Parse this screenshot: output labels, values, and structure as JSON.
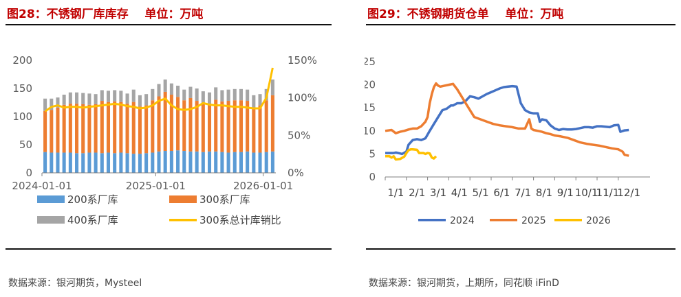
{
  "left": {
    "title": "图28：不锈钢厂库库存    单位：万吨",
    "source": "数据来源：银河期货，Mysteel",
    "colors": {
      "s200": "#5b9bd5",
      "s300": "#ed7d31",
      "s400": "#a5a5a5",
      "ratio": "#ffc000"
    },
    "chart_data": {
      "type": "bar",
      "stacked": true,
      "title": "不锈钢厂库库存",
      "ylabel": "万吨",
      "ylim": [
        0,
        200
      ],
      "yticks": [
        "0",
        "50",
        "100",
        "150",
        "200"
      ],
      "y2lim": [
        0,
        1.5
      ],
      "y2ticks": [
        "0%",
        "50%",
        "100%",
        "150%"
      ],
      "xtick_labels": [
        "2024-01-01",
        "2025-01-01",
        "2026-01-01"
      ],
      "xtick_index": [
        0,
        18,
        35
      ],
      "legend": [
        "200系厂库",
        "300系厂库",
        "400系厂库",
        "300系总计库销比"
      ],
      "series": [
        {
          "name": "200系厂库",
          "values": [
            37,
            36,
            36,
            36,
            36,
            35,
            35,
            36,
            36,
            35,
            36,
            35,
            36,
            35,
            34,
            34,
            35,
            36,
            38,
            39,
            39,
            40,
            39,
            38,
            38,
            37,
            38,
            38,
            37,
            36,
            37,
            37,
            38,
            36,
            36,
            37,
            38
          ]
        },
        {
          "name": "300系厂库",
          "values": [
            73,
            76,
            80,
            85,
            87,
            88,
            87,
            85,
            86,
            93,
            90,
            92,
            90,
            88,
            92,
            84,
            85,
            93,
            98,
            105,
            100,
            95,
            90,
            95,
            90,
            86,
            85,
            92,
            90,
            92,
            92,
            92,
            90,
            80,
            84,
            92,
            100
          ]
        },
        {
          "name": "400系厂库",
          "values": [
            22,
            20,
            18,
            18,
            20,
            20,
            20,
            20,
            18,
            19,
            20,
            20,
            20,
            18,
            22,
            20,
            20,
            20,
            22,
            22,
            20,
            20,
            19,
            20,
            22,
            22,
            20,
            22,
            20,
            20,
            20,
            20,
            20,
            22,
            20,
            20,
            28
          ]
        },
        {
          "name": "300系总计库销比",
          "axis": "right",
          "values": [
            0.82,
            0.88,
            0.9,
            0.87,
            0.88,
            0.88,
            0.87,
            0.88,
            0.89,
            0.9,
            0.91,
            0.92,
            0.91,
            0.89,
            0.88,
            0.86,
            0.87,
            0.9,
            0.96,
            0.99,
            0.9,
            0.85,
            0.84,
            0.85,
            0.88,
            0.93,
            0.91,
            0.9,
            0.9,
            0.89,
            0.88,
            0.88,
            0.87,
            0.86,
            0.86,
            1.0,
            1.4
          ]
        }
      ]
    }
  },
  "right": {
    "title": "图29：不锈钢期货仓单    单位：万吨",
    "source": "数据来源：银河期货，上期所，同花顺 iFinD",
    "colors": {
      "y2024": "#4472c4",
      "y2025": "#ed7d31",
      "y2026": "#ffc000"
    },
    "chart_data": {
      "type": "line",
      "title": "不锈钢期货仓单",
      "ylabel": "万吨",
      "ylim": [
        0,
        25
      ],
      "yticks": [
        "0",
        "5",
        "10",
        "15",
        "20",
        "25"
      ],
      "xlim": [
        0,
        12.5
      ],
      "xtick_labels": [
        "1/1",
        "2/1",
        "3/1",
        "4/1",
        "5/1",
        "6/1",
        "7/1",
        "8/1",
        "9/1",
        "10/1",
        "11/1",
        "12/1"
      ],
      "legend": [
        "2024",
        "2025",
        "2026"
      ],
      "series": [
        {
          "name": "2024",
          "x": [
            0,
            0.4,
            0.5,
            0.7,
            0.8,
            1.0,
            1.1,
            1.3,
            1.5,
            1.7,
            1.9,
            2.1,
            2.3,
            2.5,
            2.7,
            2.9,
            3.1,
            3.2,
            3.4,
            3.6,
            3.8,
            4.0,
            4.2,
            4.4,
            4.6,
            4.8,
            5.0,
            5.2,
            5.4,
            5.6,
            5.8,
            6.0,
            6.2,
            6.4,
            6.6,
            6.8,
            7.0,
            7.2,
            7.3,
            7.4,
            7.6,
            7.8,
            8.0,
            8.2,
            8.4,
            8.6,
            8.8,
            9.0,
            9.2,
            9.4,
            9.6,
            9.8,
            10.0,
            10.2,
            10.4,
            10.6,
            10.8,
            11.0,
            11.1,
            11.3,
            11.5
          ],
          "values": [
            5.2,
            5.2,
            5.3,
            5.1,
            5.0,
            5.5,
            7.0,
            8.0,
            8.2,
            8.0,
            8.4,
            10.0,
            11.5,
            13.0,
            14.5,
            14.8,
            15.5,
            15.5,
            16.0,
            16.0,
            16.5,
            17.5,
            17.3,
            17.0,
            17.5,
            18.0,
            18.4,
            18.8,
            19.2,
            19.5,
            19.6,
            19.7,
            19.6,
            16.0,
            14.5,
            14.0,
            13.8,
            13.8,
            12.0,
            12.5,
            12.3,
            11.2,
            10.5,
            10.2,
            10.4,
            10.3,
            10.3,
            10.4,
            10.6,
            10.8,
            10.8,
            10.7,
            11.0,
            11.0,
            10.9,
            10.8,
            11.2,
            11.3,
            9.8,
            10.1,
            10.2
          ]
        },
        {
          "name": "2025",
          "x": [
            0,
            0.3,
            0.5,
            0.7,
            0.9,
            1.1,
            1.3,
            1.5,
            1.7,
            1.9,
            2.0,
            2.1,
            2.2,
            2.3,
            2.4,
            2.5,
            2.6,
            2.8,
            3.0,
            3.2,
            3.4,
            3.6,
            3.8,
            4.0,
            4.2,
            4.5,
            4.8,
            5.1,
            5.4,
            5.7,
            6.0,
            6.3,
            6.6,
            6.8,
            6.9,
            7.0,
            7.2,
            7.4,
            7.6,
            7.8,
            8.0,
            8.3,
            8.6,
            8.9,
            9.2,
            9.5,
            9.8,
            10.1,
            10.4,
            10.7,
            11.0,
            11.2,
            11.3,
            11.5
          ],
          "values": [
            10.0,
            10.2,
            9.5,
            9.8,
            10.0,
            10.3,
            10.5,
            10.5,
            11.0,
            12.0,
            13.0,
            16.0,
            18.0,
            19.5,
            20.3,
            19.8,
            19.6,
            19.8,
            20.0,
            20.2,
            19.0,
            17.5,
            16.0,
            14.5,
            13.0,
            12.5,
            12.0,
            11.5,
            11.2,
            11.0,
            10.8,
            10.5,
            10.5,
            12.5,
            10.5,
            10.2,
            10.0,
            9.8,
            9.5,
            9.3,
            9.0,
            8.8,
            8.5,
            8.0,
            7.5,
            7.2,
            7.0,
            6.8,
            6.5,
            6.2,
            6.0,
            5.5,
            4.8,
            4.6
          ]
        },
        {
          "name": "2026",
          "x": [
            0,
            0.2,
            0.3,
            0.4,
            0.5,
            0.7,
            0.9,
            1.0,
            1.1,
            1.2,
            1.3,
            1.5,
            1.6,
            1.8,
            1.9,
            2.0,
            2.1,
            2.2,
            2.3,
            2.4
          ],
          "values": [
            4.5,
            4.5,
            4.2,
            4.5,
            3.8,
            3.9,
            4.4,
            5.2,
            5.8,
            6.0,
            6.0,
            5.9,
            5.2,
            5.2,
            5.0,
            5.2,
            5.1,
            4.2,
            4.0,
            4.5
          ]
        }
      ]
    }
  }
}
